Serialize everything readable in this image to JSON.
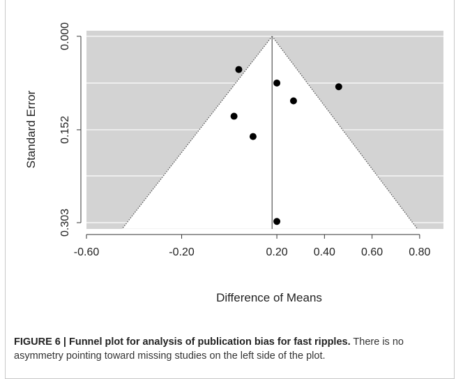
{
  "chart_data": {
    "type": "scatter",
    "title": "",
    "xlabel": "Difference of Means",
    "ylabel": "Standard Error",
    "xlim": [
      -0.6,
      0.9
    ],
    "ylim": [
      0.303,
      0.0
    ],
    "y_reversed": true,
    "x_ticks": [
      "-0.60",
      "-0.20",
      "0.20",
      "0.40",
      "0.60",
      "0.80"
    ],
    "x_tick_values": [
      -0.6,
      -0.2,
      0.2,
      0.4,
      0.6,
      0.8
    ],
    "y_ticks": [
      "0.000",
      "0.152",
      "0.303"
    ],
    "y_tick_values": [
      0.0,
      0.152,
      0.303
    ],
    "y_gridlines": [
      0.0,
      0.076,
      0.152,
      0.227,
      0.303
    ],
    "funnel": {
      "center": 0.18,
      "left_base": -0.45,
      "right_base": 0.79,
      "base_se": 0.313
    },
    "points": [
      {
        "x": 0.04,
        "y": 0.054
      },
      {
        "x": 0.2,
        "y": 0.076
      },
      {
        "x": 0.46,
        "y": 0.082
      },
      {
        "x": 0.27,
        "y": 0.105
      },
      {
        "x": 0.02,
        "y": 0.13
      },
      {
        "x": 0.1,
        "y": 0.163
      },
      {
        "x": 0.2,
        "y": 0.301
      }
    ],
    "colors": {
      "outside_funnel": "#d3d3d3",
      "funnel_fill": "#ffffff",
      "point": "#000000",
      "gridline": "#ffffff"
    },
    "grid": true,
    "legend": "none"
  },
  "caption": {
    "title": "FIGURE 6 | Funnel plot for analysis of publication bias for fast ripples.",
    "text": "There is no asymmetry pointing toward missing studies on the left side of the plot."
  }
}
